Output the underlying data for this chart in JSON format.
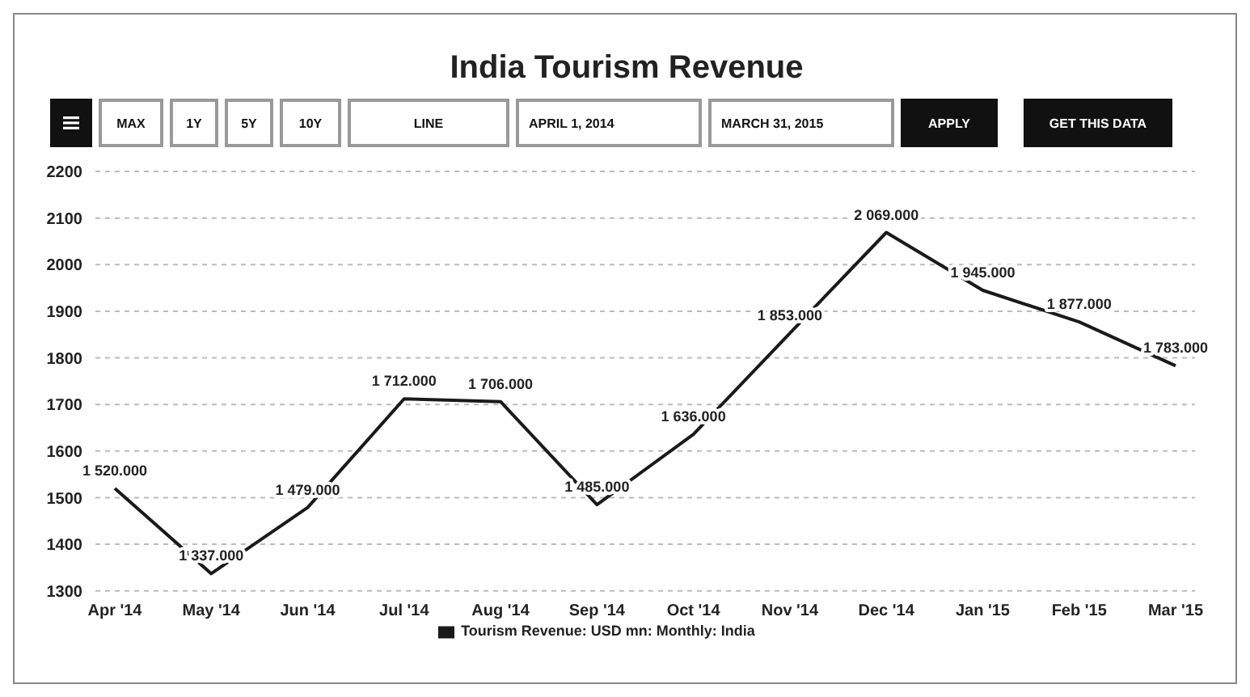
{
  "chart_data": {
    "type": "line",
    "title": "India Tourism Revenue",
    "annotations": [
      "MAX",
      "1Y",
      "5Y",
      "10Y",
      "LINE",
      "APRIL 1, 2014",
      "MARCH 31, 2015",
      "APPLY",
      "GET THIS DATA"
    ],
    "categories": [
      "Apr '14",
      "May '14",
      "Jun '14",
      "Jul '14",
      "Aug '14",
      "Sep '14",
      "Oct '14",
      "Nov '14",
      "Dec '14",
      "Jan '15",
      "Feb '15",
      "Mar '15"
    ],
    "series": [
      {
        "name": "Tourism Revenue: USD mn: Monthly: India",
        "color": "#1a1a1a",
        "values": [
          1520,
          1337,
          1479,
          1712,
          1706,
          1485,
          1636,
          1853,
          2069,
          1945,
          1877,
          1783
        ],
        "value_labels": [
          "1 520.000",
          "1 337.000",
          "1 479.000",
          "1 712.000",
          "1 706.000",
          "1 485.000",
          "1 636.000",
          "1 853.000",
          "2 069.000",
          "1 945.000",
          "1 877.000",
          "1 783.000"
        ]
      }
    ],
    "ylim": [
      1300,
      2200
    ],
    "yticks": [
      1300,
      1400,
      1500,
      1600,
      1700,
      1800,
      1900,
      2000,
      2100,
      2200
    ],
    "grid": "y",
    "legend": "bottom",
    "marker": "none",
    "line_style": "solid"
  }
}
